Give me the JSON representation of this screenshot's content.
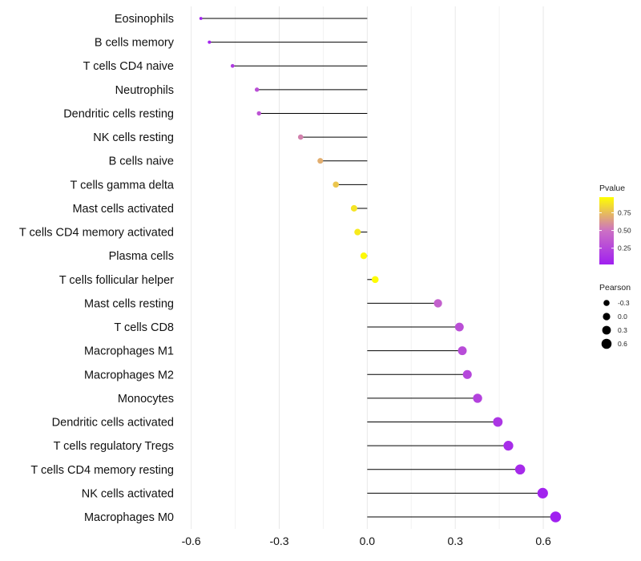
{
  "chart_data": {
    "type": "lollipop",
    "orientation": "horizontal",
    "title": "",
    "xlabel": "",
    "ylabel": "",
    "xlim": [
      -0.64,
      0.72
    ],
    "x_ticks": [
      -0.6,
      -0.3,
      0.0,
      0.3,
      0.6
    ],
    "x_tick_labels": [
      "-0.6",
      "-0.3",
      "0.0",
      "0.3",
      "0.6"
    ],
    "grid": true,
    "categories": [
      "Eosinophils",
      "B cells memory",
      "T cells CD4 naive",
      "Neutrophils",
      "Dendritic cells resting",
      "NK cells resting",
      "B cells naive",
      "T cells gamma delta",
      "Mast cells activated",
      "T cells CD4 memory activated",
      "Plasma cells",
      "T cells follicular helper",
      "Mast cells resting",
      "T cells CD8",
      "Macrophages M1",
      "Macrophages M2",
      "Monocytes",
      "Dendritic cells activated",
      "T cells regulatory  Tregs ",
      "T cells CD4 memory resting",
      "NK cells activated",
      "Macrophages M0"
    ],
    "pearson": [
      -0.567,
      -0.538,
      -0.459,
      -0.376,
      -0.369,
      -0.227,
      -0.16,
      -0.107,
      -0.045,
      -0.033,
      -0.012,
      0.027,
      0.241,
      0.314,
      0.324,
      0.341,
      0.376,
      0.445,
      0.481,
      0.521,
      0.598,
      0.642
    ],
    "pvalue": [
      0.03,
      0.05,
      0.18,
      0.3,
      0.32,
      0.55,
      0.7,
      0.78,
      0.88,
      0.9,
      0.95,
      0.96,
      0.4,
      0.3,
      0.28,
      0.25,
      0.22,
      0.15,
      0.1,
      0.08,
      0.04,
      0.02
    ],
    "legend": {
      "pvalue": {
        "title": "Pvalue",
        "ticks": [
          0.25,
          0.5,
          0.75
        ],
        "tick_labels": [
          "0.25",
          "0.50",
          "0.75"
        ],
        "range": [
          0.02,
          0.97
        ],
        "color_low": "#a020f0",
        "color_high": "#ffff00",
        "position": "right"
      },
      "pearson": {
        "title": "Pearson",
        "ticks": [
          -0.3,
          0.0,
          0.3,
          0.6
        ],
        "tick_labels": [
          "-0.3",
          "0.0",
          "0.3",
          "0.6"
        ],
        "position": "right"
      }
    }
  }
}
